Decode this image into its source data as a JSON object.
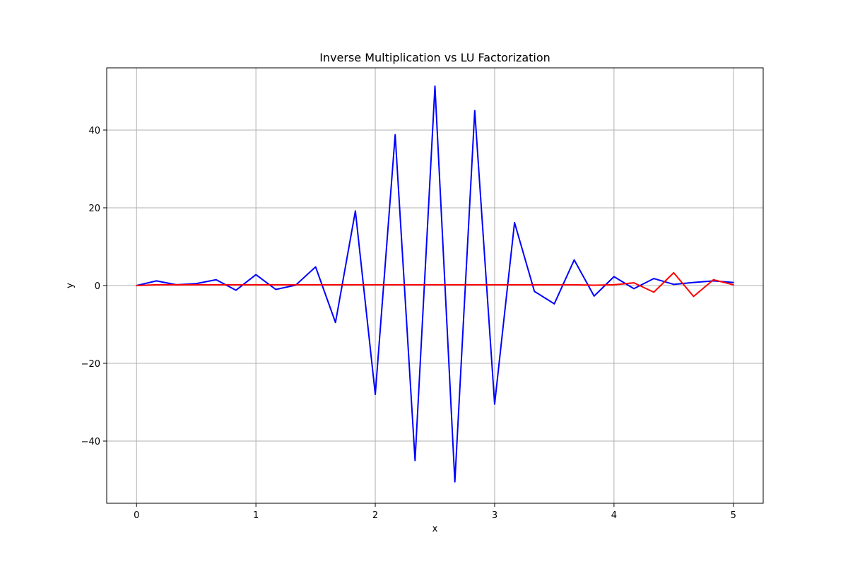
{
  "chart_data": {
    "type": "line",
    "title": "Inverse Multiplication vs LU Factorization",
    "xlabel": "x",
    "ylabel": "y",
    "xlim": [
      -0.25,
      5.25
    ],
    "ylim": [
      -56,
      56
    ],
    "grid": true,
    "xticks": [
      0,
      1,
      2,
      3,
      4,
      5
    ],
    "xtick_labels": [
      "0",
      "1",
      "2",
      "3",
      "4",
      "5"
    ],
    "yticks": [
      -40,
      -20,
      0,
      20,
      40
    ],
    "ytick_labels": [
      "−40",
      "−20",
      "0",
      "20",
      "40"
    ],
    "x": [
      0,
      0.1667,
      0.3333,
      0.5,
      0.6667,
      0.8333,
      1.0,
      1.1667,
      1.3333,
      1.5,
      1.6667,
      1.8333,
      2.0,
      2.1667,
      2.3333,
      2.5,
      2.6667,
      2.8333,
      3.0,
      3.1667,
      3.3333,
      3.5,
      3.6667,
      3.8333,
      4.0,
      4.1667,
      4.3333,
      4.5,
      4.6667,
      4.8333,
      5.0
    ],
    "series": [
      {
        "color": "#0000ff",
        "values": [
          0,
          1.2,
          0.2,
          0.5,
          1.5,
          -1.2,
          2.8,
          -1.0,
          0.1,
          4.8,
          -9.5,
          19.2,
          -28.0,
          38.8,
          -45.0,
          51.3,
          -50.5,
          45.0,
          -30.5,
          16.2,
          -1.5,
          -4.7,
          6.6,
          -2.7,
          2.3,
          -0.8,
          1.8,
          0.3,
          0.8,
          1.2,
          0.8
        ]
      },
      {
        "color": "#ff0000",
        "values": [
          0,
          0.2,
          0.2,
          0.2,
          0.2,
          0.2,
          0.2,
          0.2,
          0.2,
          0.2,
          0.2,
          0.2,
          0.2,
          0.2,
          0.2,
          0.2,
          0.2,
          0.2,
          0.2,
          0.2,
          0.2,
          0.2,
          0.2,
          0.1,
          0.2,
          0.7,
          -1.7,
          3.3,
          -2.8,
          1.5,
          0.2
        ]
      }
    ]
  }
}
